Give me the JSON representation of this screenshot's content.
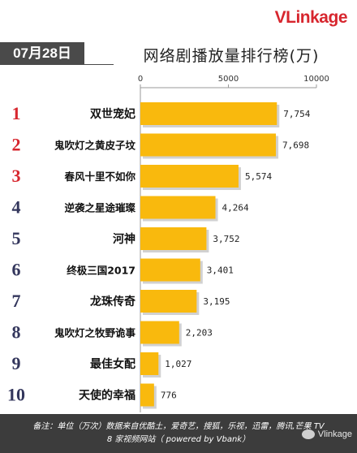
{
  "logo": {
    "prefix": "V",
    "rest": "Linkage"
  },
  "date": "07月28日",
  "title": "网络剧播放量排行榜(万)",
  "chart_data": {
    "type": "bar",
    "orientation": "horizontal",
    "title": "网络剧播放量排行榜(万)",
    "xlim": [
      0,
      10000
    ],
    "xticks": [
      0,
      5000,
      10000
    ],
    "bar_color": "#f9b90d",
    "ranks": [
      "1",
      "2",
      "3",
      "4",
      "5",
      "6",
      "7",
      "8",
      "9",
      "10"
    ],
    "rank_colors": [
      "#d7262e",
      "#d7262e",
      "#d7262e",
      "#33365c",
      "#33365c",
      "#33365c",
      "#33365c",
      "#33365c",
      "#33365c",
      "#33365c"
    ],
    "categories": [
      "双世宠妃",
      "鬼吹灯之黄皮子坟",
      "春风十里不如你",
      "逆袭之星途璀璨",
      "河神",
      "终极三国2017",
      "龙珠传奇",
      "鬼吹灯之牧野诡事",
      "最佳女配",
      "天使的幸福"
    ],
    "values": [
      7754,
      7698,
      5574,
      4264,
      3752,
      3401,
      3195,
      2203,
      1027,
      776
    ],
    "value_labels": [
      "7,754",
      "7,698",
      "5,574",
      "4,264",
      "3,752",
      "3,401",
      "3,195",
      "2,203",
      "1,027",
      "776"
    ]
  },
  "footer": {
    "note_line1": "备注：单位（万次）数据来自优酷土，爱奇艺，搜狐，乐视，迅雷，腾讯,芒果 TV",
    "note_line2": "8 家视频网站（ powered by Vbank）",
    "watermark": "Vlinkage"
  }
}
